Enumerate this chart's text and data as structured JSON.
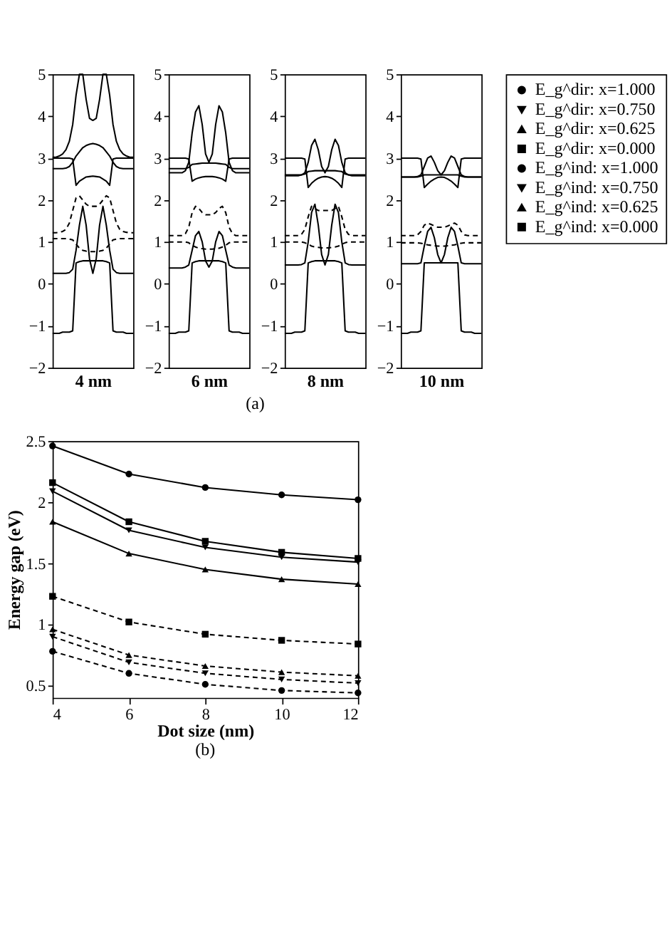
{
  "chart_data": [
    {
      "type": "line",
      "xlabel": "4 nm",
      "categories": [
        null,
        null,
        null,
        null,
        null,
        null,
        null,
        null,
        null,
        null,
        null,
        null,
        null,
        null,
        null,
        null,
        null,
        null,
        null,
        null,
        null,
        null,
        null,
        null,
        null
      ],
      "ylim": [
        -2,
        5
      ],
      "yticks": [
        -2,
        -1,
        0,
        1,
        2,
        3,
        4,
        5
      ],
      "tick_labels": "y",
      "grid": false,
      "legend": false,
      "marker": "none",
      "line_style": "solid",
      "annotations": [
        "(a)"
      ],
      "series": [
        {
          "color": "#000000",
          "values": [
            -1.18,
            -1.18,
            -1.18,
            -1.15,
            -1.15,
            -1.15,
            -1.12,
            0.5,
            0.53,
            0.55,
            0.55,
            0.55,
            0.55,
            0.55,
            0.55,
            0.55,
            0.53,
            0.5,
            -1.12,
            -1.15,
            -1.15,
            -1.15,
            -1.18,
            -1.18,
            -1.18
          ]
        },
        {
          "color": "#000000",
          "values": [
            3.0,
            3.0,
            3.0,
            3.0,
            3.0,
            3.0,
            2.98,
            2.35,
            2.45,
            2.5,
            2.55,
            2.56,
            2.57,
            2.56,
            2.55,
            2.5,
            2.45,
            2.35,
            2.98,
            3.0,
            3.0,
            3.0,
            3.0,
            3.0,
            3.0
          ]
        },
        {
          "color": "#000000",
          "values": [
            2.75,
            2.75,
            2.75,
            2.75,
            2.76,
            2.8,
            2.9,
            3.05,
            3.15,
            3.25,
            3.3,
            3.33,
            3.35,
            3.33,
            3.3,
            3.25,
            3.15,
            3.05,
            2.9,
            2.8,
            2.76,
            2.75,
            2.75,
            2.75,
            2.75
          ]
        },
        {
          "color": "#000000",
          "values": [
            3.02,
            3.02,
            3.05,
            3.1,
            3.2,
            3.4,
            3.8,
            4.5,
            5,
            5,
            4.4,
            3.95,
            3.9,
            3.95,
            4.4,
            5,
            5,
            4.5,
            3.8,
            3.4,
            3.2,
            3.1,
            3.05,
            3.02,
            3.02
          ]
        },
        {
          "color": "#000000",
          "values": [
            0.25,
            0.25,
            0.25,
            0.25,
            0.25,
            0.27,
            0.35,
            0.8,
            1.4,
            1.85,
            1.4,
            0.6,
            0.25,
            0.6,
            1.4,
            1.85,
            1.4,
            0.8,
            0.35,
            0.27,
            0.25,
            0.25,
            0.25,
            0.25,
            0.25
          ]
        },
        {
          "color": "#000000",
          "line_style": "dashed",
          "values": [
            1.22,
            1.22,
            1.23,
            1.25,
            1.3,
            1.45,
            1.75,
            2.05,
            2.1,
            2.0,
            1.9,
            1.85,
            1.85,
            1.85,
            1.9,
            2.0,
            2.1,
            2.05,
            1.75,
            1.45,
            1.3,
            1.25,
            1.23,
            1.22,
            1.22
          ]
        },
        {
          "color": "#000000",
          "line_style": "dashed",
          "values": [
            1.08,
            1.08,
            1.08,
            1.08,
            1.08,
            1.07,
            1.05,
            0.95,
            0.85,
            0.8,
            0.78,
            0.77,
            0.77,
            0.77,
            0.78,
            0.8,
            0.85,
            0.95,
            1.05,
            1.07,
            1.08,
            1.08,
            1.08,
            1.08,
            1.08
          ]
        }
      ]
    },
    {
      "type": "line",
      "xlabel": "6 nm",
      "categories": [
        null,
        null,
        null,
        null,
        null,
        null,
        null,
        null,
        null,
        null,
        null,
        null,
        null,
        null,
        null,
        null,
        null,
        null,
        null,
        null,
        null,
        null,
        null,
        null,
        null
      ],
      "ylim": [
        -2,
        5
      ],
      "yticks": [
        -2,
        -1,
        0,
        1,
        2,
        3,
        4,
        5
      ],
      "tick_labels": "y",
      "grid": false,
      "legend": false,
      "marker": "none",
      "line_style": "solid",
      "series": [
        {
          "color": "#000000",
          "values": [
            -1.18,
            -1.18,
            -1.18,
            -1.15,
            -1.15,
            -1.15,
            -1.12,
            0.5,
            0.53,
            0.55,
            0.55,
            0.55,
            0.55,
            0.55,
            0.55,
            0.55,
            0.53,
            0.5,
            -1.12,
            -1.15,
            -1.15,
            -1.15,
            -1.18,
            -1.18,
            -1.18
          ]
        },
        {
          "color": "#000000",
          "values": [
            3.0,
            3.0,
            3.0,
            3.0,
            3.0,
            3.0,
            2.98,
            2.45,
            2.5,
            2.53,
            2.55,
            2.56,
            2.56,
            2.56,
            2.55,
            2.53,
            2.5,
            2.45,
            2.98,
            3.0,
            3.0,
            3.0,
            3.0,
            3.0,
            3.0
          ]
        },
        {
          "color": "#000000",
          "values": [
            2.75,
            2.75,
            2.75,
            2.75,
            2.75,
            2.75,
            2.78,
            2.85,
            2.86,
            2.87,
            2.88,
            2.88,
            2.88,
            2.88,
            2.88,
            2.87,
            2.86,
            2.85,
            2.78,
            2.75,
            2.75,
            2.75,
            2.75,
            2.75,
            2.75
          ]
        },
        {
          "color": "#000000",
          "values": [
            2.65,
            2.65,
            2.65,
            2.65,
            2.65,
            2.7,
            2.9,
            3.6,
            4.1,
            4.25,
            3.8,
            3.1,
            2.9,
            3.1,
            3.8,
            4.25,
            4.1,
            3.6,
            2.9,
            2.7,
            2.65,
            2.65,
            2.65,
            2.65,
            2.65
          ]
        },
        {
          "color": "#000000",
          "values": [
            0.38,
            0.38,
            0.38,
            0.38,
            0.38,
            0.4,
            0.45,
            0.8,
            1.15,
            1.25,
            1.0,
            0.55,
            0.4,
            0.55,
            1.0,
            1.25,
            1.15,
            0.8,
            0.45,
            0.4,
            0.38,
            0.38,
            0.38,
            0.38,
            0.38
          ]
        },
        {
          "color": "#000000",
          "line_style": "dashed",
          "values": [
            1.15,
            1.15,
            1.15,
            1.15,
            1.15,
            1.2,
            1.35,
            1.7,
            1.85,
            1.8,
            1.7,
            1.65,
            1.65,
            1.65,
            1.7,
            1.8,
            1.85,
            1.7,
            1.35,
            1.2,
            1.15,
            1.15,
            1.15,
            1.15,
            1.15
          ]
        },
        {
          "color": "#000000",
          "line_style": "dashed",
          "values": [
            1.0,
            1.0,
            1.0,
            1.0,
            1.0,
            1.0,
            0.98,
            0.92,
            0.88,
            0.85,
            0.84,
            0.83,
            0.83,
            0.83,
            0.84,
            0.85,
            0.88,
            0.92,
            0.98,
            1.0,
            1.0,
            1.0,
            1.0,
            1.0,
            1.0
          ]
        }
      ]
    },
    {
      "type": "line",
      "xlabel": "8 nm",
      "categories": [
        null,
        null,
        null,
        null,
        null,
        null,
        null,
        null,
        null,
        null,
        null,
        null,
        null,
        null,
        null,
        null,
        null,
        null,
        null,
        null,
        null,
        null,
        null,
        null,
        null
      ],
      "ylim": [
        -2,
        5
      ],
      "yticks": [
        -2,
        -1,
        0,
        1,
        2,
        3,
        4,
        5
      ],
      "tick_labels": "y",
      "grid": false,
      "legend": false,
      "marker": "none",
      "line_style": "solid",
      "series": [
        {
          "color": "#000000",
          "values": [
            -1.18,
            -1.18,
            -1.18,
            -1.15,
            -1.15,
            -1.15,
            -1.12,
            0.5,
            0.53,
            0.55,
            0.55,
            0.55,
            0.55,
            0.55,
            0.55,
            0.55,
            0.53,
            0.5,
            -1.12,
            -1.15,
            -1.15,
            -1.15,
            -1.18,
            -1.18,
            -1.18
          ]
        },
        {
          "color": "#000000",
          "values": [
            3.0,
            3.0,
            3.0,
            3.0,
            3.0,
            3.0,
            2.98,
            2.3,
            2.4,
            2.47,
            2.52,
            2.55,
            2.56,
            2.55,
            2.52,
            2.47,
            2.4,
            2.3,
            2.98,
            3.0,
            3.0,
            3.0,
            3.0,
            3.0,
            3.0
          ]
        },
        {
          "color": "#000000",
          "values": [
            2.6,
            2.6,
            2.6,
            2.6,
            2.6,
            2.6,
            2.62,
            2.68,
            2.69,
            2.7,
            2.7,
            2.7,
            2.7,
            2.7,
            2.7,
            2.7,
            2.69,
            2.68,
            2.62,
            2.6,
            2.6,
            2.6,
            2.6,
            2.6,
            2.6
          ]
        },
        {
          "color": "#000000",
          "values": [
            2.58,
            2.58,
            2.58,
            2.58,
            2.58,
            2.6,
            2.65,
            2.9,
            3.3,
            3.45,
            3.2,
            2.8,
            2.65,
            2.8,
            3.2,
            3.45,
            3.3,
            2.9,
            2.65,
            2.6,
            2.58,
            2.58,
            2.58,
            2.58,
            2.58
          ]
        },
        {
          "color": "#000000",
          "values": [
            0.45,
            0.45,
            0.45,
            0.45,
            0.45,
            0.46,
            0.5,
            1.0,
            1.7,
            1.9,
            1.4,
            0.7,
            0.45,
            0.7,
            1.4,
            1.9,
            1.7,
            1.0,
            0.5,
            0.46,
            0.45,
            0.45,
            0.45,
            0.45,
            0.45
          ]
        },
        {
          "color": "#000000",
          "line_style": "dashed",
          "values": [
            1.15,
            1.15,
            1.15,
            1.15,
            1.15,
            1.18,
            1.3,
            1.6,
            1.85,
            1.8,
            1.75,
            1.75,
            1.75,
            1.75,
            1.75,
            1.8,
            1.85,
            1.6,
            1.3,
            1.18,
            1.15,
            1.15,
            1.15,
            1.15,
            1.15
          ]
        },
        {
          "color": "#000000",
          "line_style": "dashed",
          "values": [
            1.0,
            1.0,
            1.0,
            1.0,
            1.0,
            1.0,
            0.98,
            0.95,
            0.9,
            0.88,
            0.87,
            0.86,
            0.86,
            0.86,
            0.87,
            0.88,
            0.9,
            0.95,
            0.98,
            1.0,
            1.0,
            1.0,
            1.0,
            1.0,
            1.0
          ]
        }
      ]
    },
    {
      "type": "line",
      "xlabel": "10 nm",
      "categories": [
        null,
        null,
        null,
        null,
        null,
        null,
        null,
        null,
        null,
        null,
        null,
        null,
        null,
        null,
        null,
        null,
        null,
        null,
        null,
        null,
        null,
        null,
        null,
        null,
        null
      ],
      "ylim": [
        -2,
        5
      ],
      "yticks": [
        -2,
        -1,
        0,
        1,
        2,
        3,
        4,
        5
      ],
      "tick_labels": "y",
      "grid": false,
      "legend": false,
      "marker": "none",
      "line_style": "solid",
      "series": [
        {
          "color": "#000000",
          "values": [
            -1.18,
            -1.18,
            -1.18,
            -1.15,
            -1.15,
            -1.15,
            -1.12,
            0.5,
            0.5,
            0.5,
            0.5,
            0.5,
            0.5,
            0.5,
            0.5,
            0.5,
            0.5,
            0.5,
            -1.12,
            -1.15,
            -1.15,
            -1.15,
            -1.18,
            -1.18,
            -1.18
          ]
        },
        {
          "color": "#000000",
          "values": [
            3.0,
            3.0,
            3.0,
            3.0,
            3.0,
            3.0,
            2.98,
            2.3,
            2.38,
            2.45,
            2.5,
            2.54,
            2.55,
            2.54,
            2.5,
            2.45,
            2.38,
            2.3,
            2.98,
            3.0,
            3.0,
            3.0,
            3.0,
            3.0,
            3.0
          ]
        },
        {
          "color": "#000000",
          "values": [
            2.55,
            2.55,
            2.55,
            2.55,
            2.55,
            2.55,
            2.57,
            2.6,
            2.6,
            2.6,
            2.6,
            2.6,
            2.6,
            2.6,
            2.6,
            2.6,
            2.6,
            2.6,
            2.57,
            2.55,
            2.55,
            2.55,
            2.55,
            2.55,
            2.55
          ]
        },
        {
          "color": "#000000",
          "values": [
            2.55,
            2.55,
            2.55,
            2.55,
            2.55,
            2.56,
            2.6,
            2.8,
            3.0,
            3.05,
            2.9,
            2.7,
            2.6,
            2.7,
            2.9,
            3.05,
            3.0,
            2.8,
            2.6,
            2.56,
            2.55,
            2.55,
            2.55,
            2.55,
            2.55
          ]
        },
        {
          "color": "#000000",
          "values": [
            0.48,
            0.48,
            0.48,
            0.48,
            0.48,
            0.48,
            0.5,
            0.9,
            1.25,
            1.35,
            1.1,
            0.7,
            0.5,
            0.7,
            1.1,
            1.35,
            1.25,
            0.9,
            0.5,
            0.48,
            0.48,
            0.48,
            0.48,
            0.48,
            0.48
          ]
        },
        {
          "color": "#000000",
          "line_style": "dashed",
          "values": [
            1.15,
            1.15,
            1.15,
            1.15,
            1.15,
            1.17,
            1.25,
            1.4,
            1.45,
            1.42,
            1.38,
            1.35,
            1.35,
            1.35,
            1.38,
            1.42,
            1.45,
            1.4,
            1.25,
            1.17,
            1.15,
            1.15,
            1.15,
            1.15,
            1.15
          ]
        },
        {
          "color": "#000000",
          "line_style": "dashed",
          "values": [
            0.98,
            0.98,
            0.98,
            0.98,
            0.98,
            0.98,
            0.97,
            0.95,
            0.93,
            0.92,
            0.91,
            0.9,
            0.9,
            0.9,
            0.91,
            0.92,
            0.93,
            0.95,
            0.97,
            0.98,
            0.98,
            0.98,
            0.98,
            0.98,
            0.98
          ]
        }
      ]
    },
    {
      "type": "line",
      "xlabel": "Dot size (nm)",
      "ylabel": "Energy gap (eV)",
      "x": [
        4,
        6,
        8,
        10,
        12
      ],
      "xlim": [
        4,
        12
      ],
      "xticks": [
        4,
        6,
        8,
        10,
        12
      ],
      "ylim": [
        0.4,
        2.5
      ],
      "yticks": [
        0.5,
        1,
        1.5,
        2,
        2.5
      ],
      "grid": false,
      "legend": "right",
      "annotations": [
        "(b)"
      ],
      "series": [
        {
          "name": "E_g^dir: x=1.000",
          "color": "#000000",
          "marker": "circle",
          "line_style": "solid",
          "values": [
            2.46,
            2.23,
            2.12,
            2.06,
            2.02
          ]
        },
        {
          "name": "E_g^dir: x=0.750",
          "color": "#000000",
          "marker": "triangle-down",
          "line_style": "solid",
          "values": [
            2.09,
            1.77,
            1.63,
            1.55,
            1.51
          ]
        },
        {
          "name": "E_g^dir: x=0.625",
          "color": "#000000",
          "marker": "triangle",
          "line_style": "solid",
          "values": [
            1.84,
            1.58,
            1.45,
            1.37,
            1.33
          ]
        },
        {
          "name": "E_g^dir: x=0.000",
          "color": "#000000",
          "marker": "square",
          "line_style": "solid",
          "values": [
            2.16,
            1.84,
            1.68,
            1.59,
            1.54
          ]
        },
        {
          "name": "E_g^ind: x=1.000",
          "color": "#000000",
          "marker": "circle",
          "line_style": "dashed",
          "values": [
            0.78,
            0.6,
            0.51,
            0.46,
            0.44
          ]
        },
        {
          "name": "E_g^ind: x=0.750",
          "color": "#000000",
          "marker": "triangle-down",
          "line_style": "dashed",
          "values": [
            0.9,
            0.69,
            0.6,
            0.55,
            0.52
          ]
        },
        {
          "name": "E_g^ind: x=0.625",
          "color": "#000000",
          "marker": "triangle",
          "line_style": "dashed",
          "values": [
            0.96,
            0.75,
            0.66,
            0.61,
            0.58
          ]
        },
        {
          "name": "E_g^ind: x=0.000",
          "color": "#000000",
          "marker": "square",
          "line_style": "dashed",
          "values": [
            1.23,
            1.02,
            0.92,
            0.87,
            0.84
          ]
        }
      ]
    }
  ]
}
